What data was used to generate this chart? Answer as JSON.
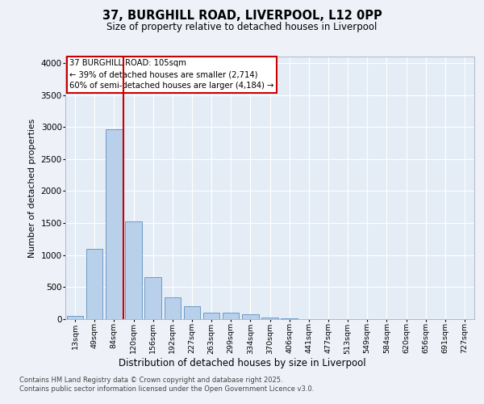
{
  "title_line1": "37, BURGHILL ROAD, LIVERPOOL, L12 0PP",
  "title_line2": "Size of property relative to detached houses in Liverpool",
  "xlabel": "Distribution of detached houses by size in Liverpool",
  "ylabel": "Number of detached properties",
  "categories": [
    "13sqm",
    "49sqm",
    "84sqm",
    "120sqm",
    "156sqm",
    "192sqm",
    "227sqm",
    "263sqm",
    "299sqm",
    "334sqm",
    "370sqm",
    "406sqm",
    "441sqm",
    "477sqm",
    "513sqm",
    "549sqm",
    "584sqm",
    "620sqm",
    "656sqm",
    "691sqm",
    "727sqm"
  ],
  "values": [
    50,
    1100,
    2970,
    1530,
    650,
    340,
    200,
    100,
    100,
    70,
    30,
    10,
    5,
    0,
    0,
    0,
    0,
    0,
    0,
    0,
    0
  ],
  "bar_color": "#b8d0ea",
  "bar_edge_color": "#6090c0",
  "vline_x_index": 2.5,
  "vline_color": "#cc0000",
  "annotation_text": "37 BURGHILL ROAD: 105sqm\n← 39% of detached houses are smaller (2,714)\n60% of semi-detached houses are larger (4,184) →",
  "annotation_box_color": "#cc0000",
  "ylim": [
    0,
    4100
  ],
  "yticks": [
    0,
    500,
    1000,
    1500,
    2000,
    2500,
    3000,
    3500,
    4000
  ],
  "footer_line1": "Contains HM Land Registry data © Crown copyright and database right 2025.",
  "footer_line2": "Contains public sector information licensed under the Open Government Licence v3.0.",
  "background_color": "#eef2f8",
  "plot_bg_color": "#e4ecf6"
}
